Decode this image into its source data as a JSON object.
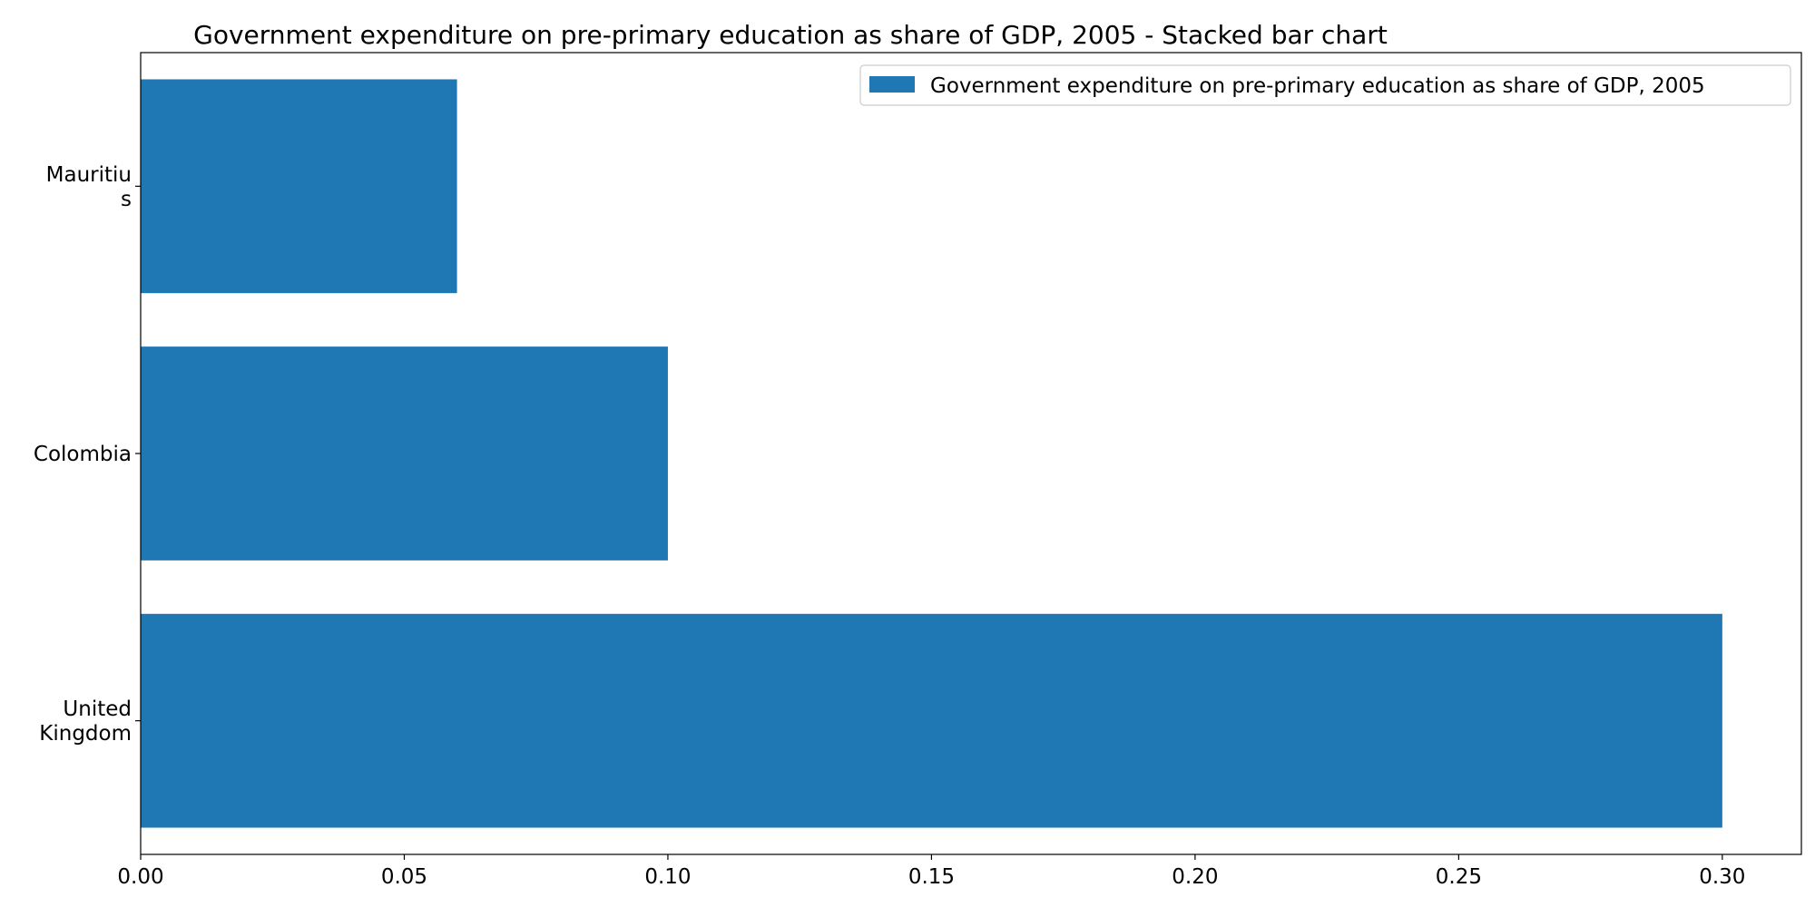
{
  "chart_data": {
    "type": "bar",
    "orientation": "horizontal",
    "title": "Government expenditure on pre-primary education as share of GDP, 2005 - Stacked bar chart",
    "xlabel": "",
    "ylabel": "",
    "categories": [
      [
        "United",
        "Kingdom"
      ],
      [
        "Colombia"
      ],
      [
        "Mauritiu",
        "s"
      ]
    ],
    "series": [
      {
        "name": "Government expenditure on pre-primary education as share of GDP, 2005",
        "values": [
          0.3,
          0.1,
          0.06
        ],
        "color": "#1f77b4"
      }
    ],
    "xlim": [
      0,
      0.315
    ],
    "xticks": [
      "0.00",
      "0.05",
      "0.10",
      "0.15",
      "0.20",
      "0.25",
      "0.30"
    ],
    "grid": false,
    "legend_position": "top-right"
  }
}
